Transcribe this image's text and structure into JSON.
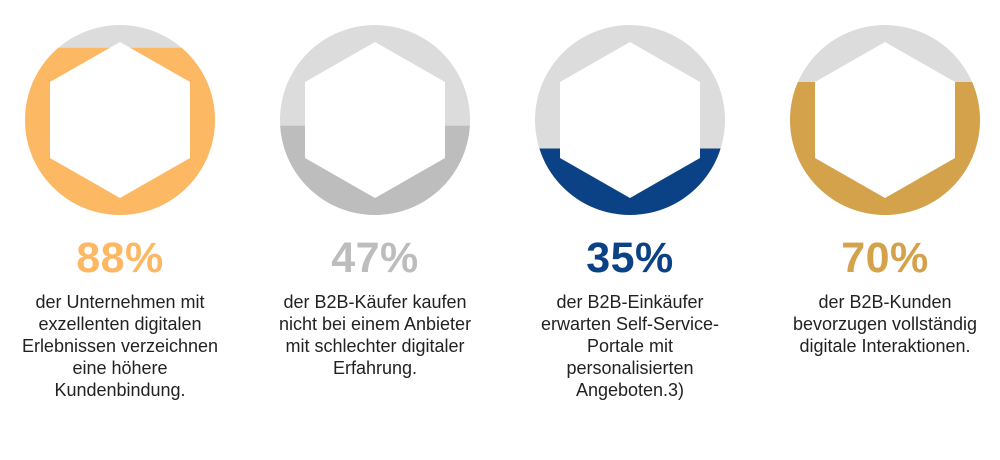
{
  "chart_data": {
    "type": "pie",
    "track_color": "#dcdcdc",
    "items": [
      {
        "value": 88,
        "label": "88%",
        "color": "#fdb863",
        "description": "der Unternehmen mit exzellenten digitalen Erlebnissen verzeichnen eine höhere Kundenbindung."
      },
      {
        "value": 47,
        "label": "47%",
        "color": "#bdbdbd",
        "description": "der B2B-Käufer kaufen nicht bei einem Anbieter mit schlechter digitaler Erfahrung."
      },
      {
        "value": 35,
        "label": "35%",
        "color": "#0b4285",
        "description": "der B2B-Einkäufer erwarten Self-Service-Portale mit personalisierten Angeboten.3)"
      },
      {
        "value": 70,
        "label": "70%",
        "color": "#d3a24a",
        "description": "der B2B-Kunden bevorzugen vollständig digitale Interaktionen."
      }
    ]
  }
}
